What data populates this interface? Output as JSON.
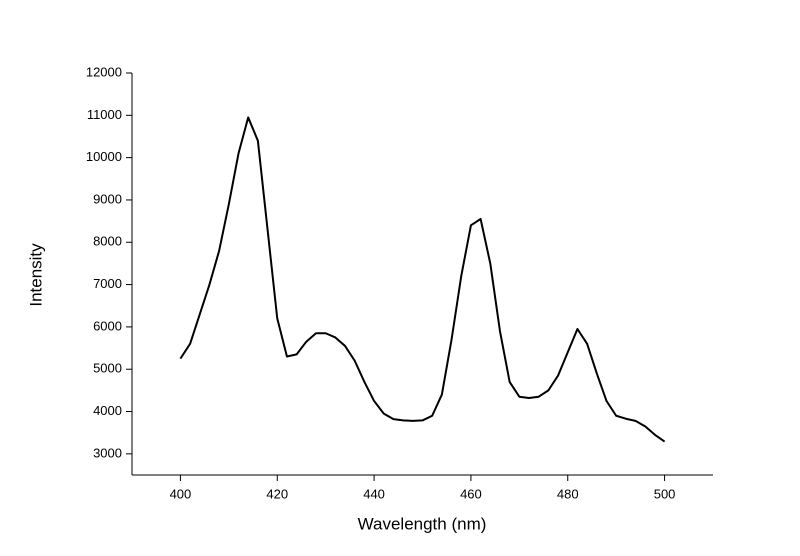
{
  "chart_data": {
    "type": "line",
    "x_label": "Wavelength (nm)",
    "y_label": "Intensity",
    "x": [
      400,
      402,
      404,
      406,
      408,
      410,
      412,
      414,
      416,
      418,
      420,
      422,
      424,
      426,
      428,
      430,
      432,
      434,
      436,
      438,
      440,
      442,
      444,
      446,
      448,
      450,
      452,
      454,
      456,
      458,
      460,
      462,
      464,
      466,
      468,
      470,
      472,
      474,
      476,
      478,
      480,
      482,
      484,
      486,
      488,
      490,
      492,
      494,
      496,
      498,
      500
    ],
    "series": [
      {
        "color": "#000000",
        "values": [
          5250,
          5600,
          6300,
          7000,
          7800,
          8900,
          10100,
          10950,
          10400,
          8300,
          6200,
          5300,
          5350,
          5650,
          5850,
          5850,
          5750,
          5550,
          5200,
          4700,
          4250,
          3950,
          3820,
          3790,
          3780,
          3790,
          3900,
          4400,
          5700,
          7200,
          8400,
          8550,
          7500,
          5900,
          4700,
          4350,
          4320,
          4350,
          4500,
          4850,
          5400,
          5950,
          5600,
          4900,
          4250,
          3900,
          3830,
          3780,
          3650,
          3450,
          3290
        ]
      }
    ],
    "xlim": [
      390,
      510
    ],
    "xticks": [
      400,
      420,
      440,
      460,
      480,
      500
    ],
    "ylim": [
      2500,
      12000
    ],
    "yticks": [
      3000,
      4000,
      5000,
      6000,
      7000,
      8000,
      9000,
      10000,
      11000,
      12000
    ],
    "grid": false
  }
}
